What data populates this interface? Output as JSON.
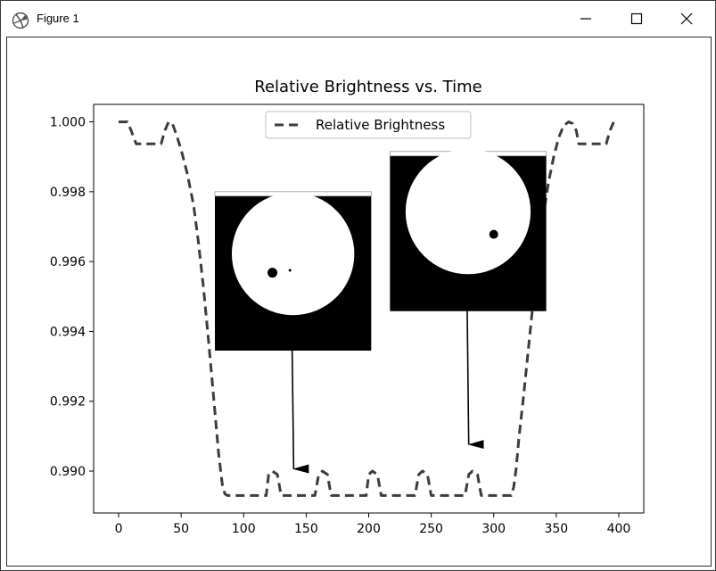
{
  "window": {
    "title": "Figure 1",
    "icons": [
      "matplotlib-app-icon",
      "minimize-icon",
      "maximize-icon",
      "close-icon"
    ]
  },
  "chart_data": {
    "type": "line",
    "title": "Relative Brightness vs. Time",
    "xlabel": "",
    "ylabel": "",
    "xlim": [
      -20,
      420
    ],
    "ylim": [
      0.9888,
      1.0005
    ],
    "x_ticks": [
      0,
      50,
      100,
      150,
      200,
      250,
      300,
      350,
      400
    ],
    "x_tick_labels": [
      "0",
      "50",
      "100",
      "150",
      "200",
      "250",
      "300",
      "350",
      "400"
    ],
    "y_ticks": [
      0.99,
      0.992,
      0.994,
      0.996,
      0.998,
      1.0
    ],
    "y_tick_labels": [
      "0.990",
      "0.992",
      "0.994",
      "0.996",
      "0.998",
      "1.000"
    ],
    "grid": false,
    "legend_position": "top-center",
    "series": [
      {
        "name": "Relative Brightness",
        "line_style": "dashed",
        "color": "#3c3c3c",
        "x": [
          0,
          7,
          10,
          14,
          34,
          37,
          40,
          43,
          46,
          50,
          55,
          60,
          64,
          68,
          72,
          76,
          80,
          83,
          85,
          87,
          90,
          118,
          120,
          123,
          127,
          130,
          157,
          160,
          163,
          167,
          170,
          198,
          200,
          203,
          207,
          210,
          237,
          240,
          243,
          247,
          250,
          277,
          280,
          283,
          287,
          290,
          314,
          316,
          318,
          320,
          324,
          328,
          332,
          336,
          340,
          344,
          348,
          352,
          356,
          360,
          363,
          366,
          368,
          371,
          390,
          393,
          396
        ],
        "y": [
          1.0,
          1.0,
          0.99975,
          0.99937,
          0.99937,
          0.99975,
          1.0,
          0.99995,
          0.99965,
          0.9992,
          0.9985,
          0.9976,
          0.9965,
          0.9952,
          0.9937,
          0.9921,
          0.9905,
          0.9896,
          0.98935,
          0.9893,
          0.9893,
          0.9893,
          0.9899,
          0.99,
          0.9899,
          0.9893,
          0.9893,
          0.9899,
          0.99,
          0.9899,
          0.9893,
          0.9893,
          0.9899,
          0.99,
          0.9899,
          0.9893,
          0.9893,
          0.9899,
          0.99,
          0.9899,
          0.9893,
          0.9893,
          0.9899,
          0.99,
          0.9899,
          0.9893,
          0.9893,
          0.98955,
          0.9901,
          0.9909,
          0.9922,
          0.9936,
          0.995,
          0.9963,
          0.9974,
          0.9983,
          0.999,
          0.99955,
          0.9999,
          1.0,
          0.99995,
          0.99975,
          0.99937,
          0.99937,
          0.99937,
          0.99975,
          1.0
        ]
      }
    ],
    "insets": [
      {
        "name": "star-transit-inset-1",
        "anchor_data": [
          140,
          0.9896
        ],
        "box_data": {
          "x0": 77,
          "x1": 202,
          "y_top": 0.998,
          "y_bottom": 0.99345
        },
        "disk_center_data": [
          139.5,
          0.99622
        ],
        "disk_radius_x": 49,
        "planet": {
          "x": 123,
          "y": 0.99568,
          "r": 5.5
        },
        "moon": {
          "x": 137,
          "y": 0.99575,
          "r": 1.5
        }
      },
      {
        "name": "star-transit-inset-2",
        "anchor_data": [
          280,
          0.9903
        ],
        "box_data": {
          "x0": 217,
          "x1": 342,
          "y_top": 0.99915,
          "y_bottom": 0.99458
        },
        "disk_center_data": [
          279.5,
          0.99743
        ],
        "disk_radius_x": 50,
        "planet": {
          "x": 300,
          "y": 0.99678,
          "r": 5.0
        },
        "moon": null
      }
    ]
  }
}
